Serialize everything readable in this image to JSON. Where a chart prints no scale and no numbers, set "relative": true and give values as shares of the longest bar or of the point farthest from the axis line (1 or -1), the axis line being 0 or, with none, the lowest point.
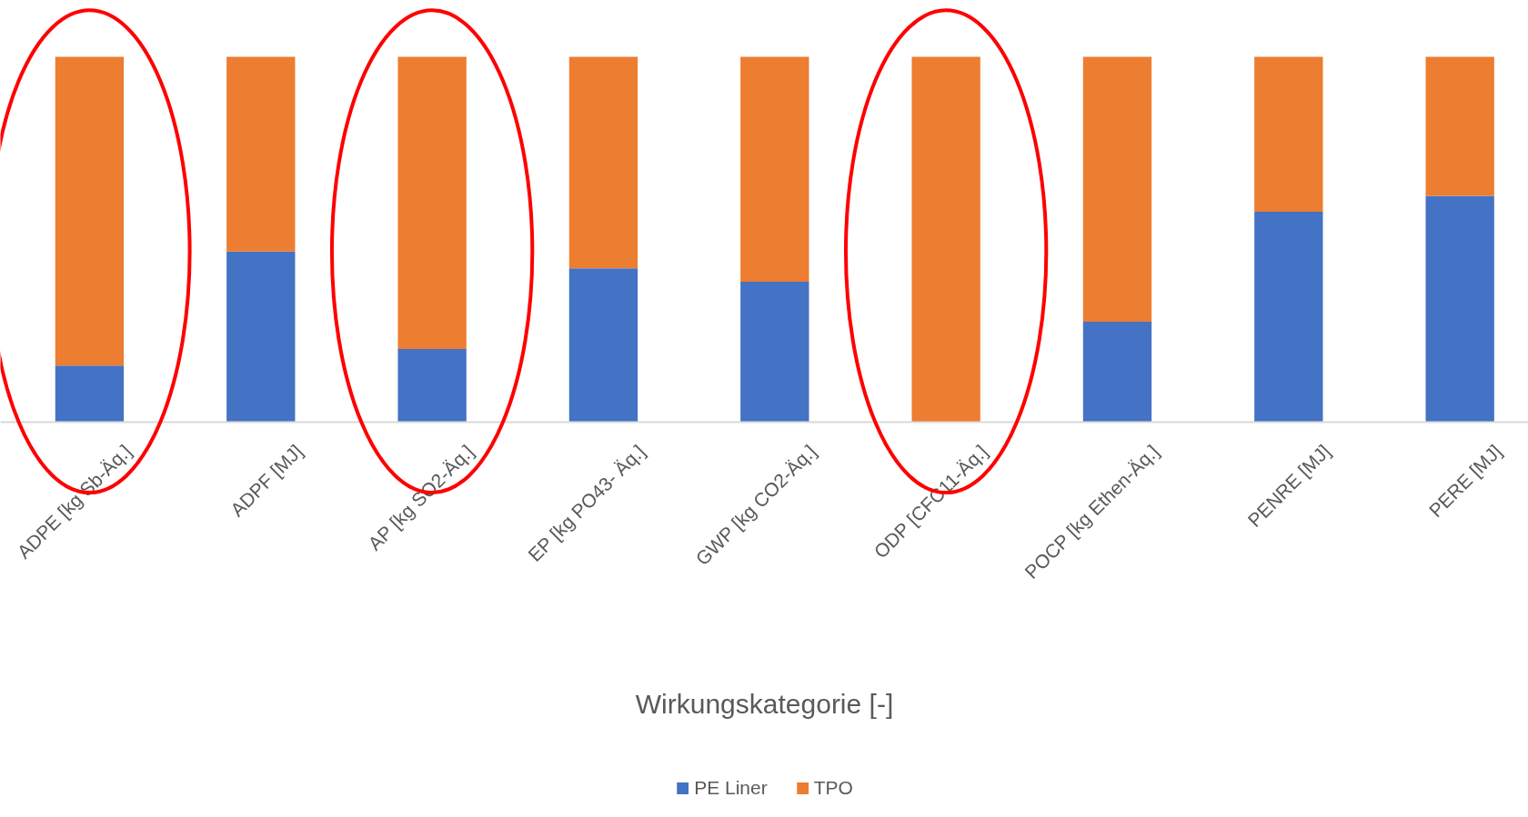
{
  "chart_data": {
    "type": "bar",
    "stacked": true,
    "relative": true,
    "xlabel": "Wirkungskategorie [-]",
    "categories": [
      "ADPE [kg Sb-Äq.]",
      "ADPF [MJ]",
      "AP [kg SO2-Äq.]",
      "EP [kg PO43- Äq.]",
      "GWP [kg CO2-Äq.]",
      "ODP [CFC11-Äq.]",
      "POCP [kg Ethen-Äq.]",
      "PENRE [MJ]",
      "PERE [MJ]"
    ],
    "series": [
      {
        "name": "PE Liner",
        "color": "#4472c4",
        "values": [
          0.155,
          0.467,
          0.2,
          0.421,
          0.384,
          0,
          0.275,
          0.576,
          0.619
        ]
      },
      {
        "name": "TPO",
        "color": "#ed7d31",
        "values": [
          0.845,
          0.533,
          0.8,
          0.579,
          0.616,
          1,
          0.725,
          0.424,
          0.381
        ]
      }
    ],
    "legend": "bottom",
    "grid": false
  }
}
